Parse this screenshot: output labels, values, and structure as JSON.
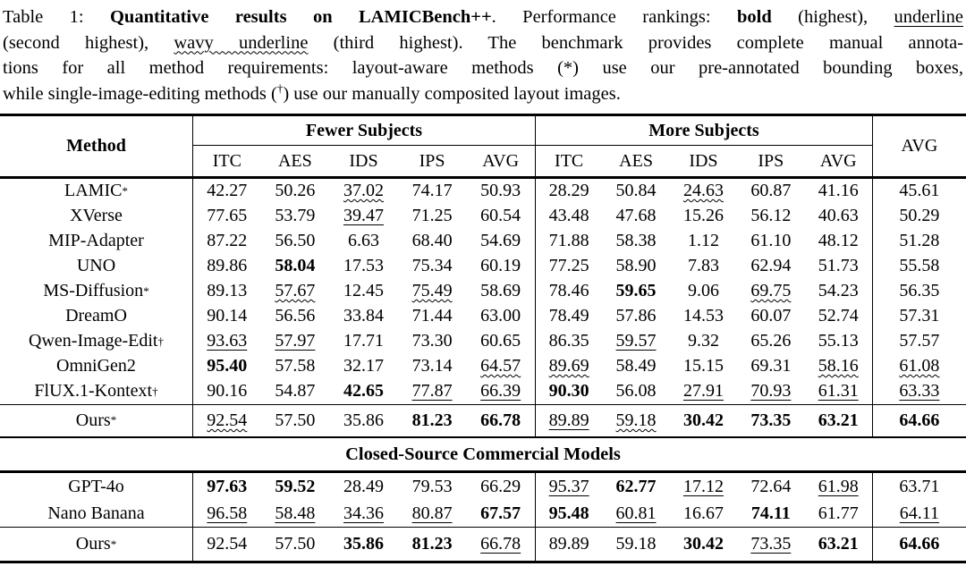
{
  "caption": {
    "lines": [
      [
        {
          "t": "Table 1: ",
          "s": ""
        },
        {
          "t": "Quantitative results on LAMICBench++",
          "s": "b"
        },
        {
          "t": ". Performance rankings: ",
          "s": ""
        },
        {
          "t": "bold",
          "s": "b"
        },
        {
          "t": " (highest), ",
          "s": ""
        },
        {
          "t": "underline",
          "s": "u"
        }
      ],
      [
        {
          "t": "(second highest), ",
          "s": ""
        },
        {
          "t": "wavy underline",
          "s": "w"
        },
        {
          "t": " (third highest). The benchmark provides complete manual annota-",
          "s": ""
        }
      ],
      [
        {
          "t": "tions for all method requirements: layout-aware methods (*) use our pre-annotated bounding boxes,",
          "s": ""
        }
      ],
      [
        {
          "t": "while single-image-editing methods (",
          "s": ""
        },
        {
          "t": "†",
          "s": "sup"
        },
        {
          "t": ") use our manually composited layout images.",
          "s": ""
        }
      ]
    ]
  },
  "table": {
    "method_header": "Method",
    "overall_avg_header": "AVG",
    "groups": [
      {
        "label": "Fewer Subjects",
        "cols": [
          "ITC",
          "AES",
          "IDS",
          "IPS",
          "AVG"
        ]
      },
      {
        "label": "More Subjects",
        "cols": [
          "ITC",
          "AES",
          "IDS",
          "IPS",
          "AVG"
        ]
      }
    ],
    "col_keys": [
      "fewer-itc",
      "fewer-aes",
      "fewer-ids",
      "fewer-ips",
      "fewer-avg",
      "more-itc",
      "more-aes",
      "more-ids",
      "more-ips",
      "more-avg",
      "overall-avg"
    ],
    "sections": [
      {
        "id": "open-source",
        "rows": [
          {
            "method": "LAMIC",
            "sup": "*",
            "values": [
              "42.27",
              "50.26",
              "37.02",
              "74.17",
              "50.93",
              "28.29",
              "50.84",
              "24.63",
              "60.87",
              "41.16",
              "45.61"
            ],
            "marks": [
              "",
              "",
              "w",
              "",
              "",
              "",
              "",
              "w",
              "",
              "",
              ""
            ]
          },
          {
            "method": "XVerse",
            "sup": "",
            "values": [
              "77.65",
              "53.79",
              "39.47",
              "71.25",
              "60.54",
              "43.48",
              "47.68",
              "15.26",
              "56.12",
              "40.63",
              "50.29"
            ],
            "marks": [
              "",
              "",
              "u",
              "",
              "",
              "",
              "",
              "",
              "",
              "",
              ""
            ]
          },
          {
            "method": "MIP-Adapter",
            "sup": "",
            "values": [
              "87.22",
              "56.50",
              "6.63",
              "68.40",
              "54.69",
              "71.88",
              "58.38",
              "1.12",
              "61.10",
              "48.12",
              "51.28"
            ],
            "marks": [
              "",
              "",
              "",
              "",
              "",
              "",
              "",
              "",
              "",
              "",
              ""
            ]
          },
          {
            "method": "UNO",
            "sup": "",
            "values": [
              "89.86",
              "58.04",
              "17.53",
              "75.34",
              "60.19",
              "77.25",
              "58.90",
              "7.83",
              "62.94",
              "51.73",
              "55.58"
            ],
            "marks": [
              "",
              "b",
              "",
              "",
              "",
              "",
              "",
              "",
              "",
              "",
              ""
            ]
          },
          {
            "method": "MS-Diffusion",
            "sup": "*",
            "values": [
              "89.13",
              "57.67",
              "12.45",
              "75.49",
              "58.69",
              "78.46",
              "59.65",
              "9.06",
              "69.75",
              "54.23",
              "56.35"
            ],
            "marks": [
              "",
              "w",
              "",
              "w",
              "",
              "",
              "b",
              "",
              "w",
              "",
              ""
            ]
          },
          {
            "method": "DreamO",
            "sup": "",
            "values": [
              "90.14",
              "56.56",
              "33.84",
              "71.44",
              "63.00",
              "78.49",
              "57.86",
              "14.53",
              "60.07",
              "52.74",
              "57.31"
            ],
            "marks": [
              "",
              "",
              "",
              "",
              "",
              "",
              "",
              "",
              "",
              "",
              ""
            ]
          },
          {
            "method": "Qwen-Image-Edit",
            "sup": "†",
            "values": [
              "93.63",
              "57.97",
              "17.71",
              "73.30",
              "60.65",
              "86.35",
              "59.57",
              "9.32",
              "65.26",
              "55.13",
              "57.57"
            ],
            "marks": [
              "u",
              "u",
              "",
              "",
              "",
              "",
              "u",
              "",
              "",
              "",
              ""
            ]
          },
          {
            "method": "OmniGen2",
            "sup": "",
            "values": [
              "95.40",
              "57.58",
              "32.17",
              "73.14",
              "64.57",
              "89.69",
              "58.49",
              "15.15",
              "69.31",
              "58.16",
              "61.08"
            ],
            "marks": [
              "b",
              "",
              "",
              "",
              "w",
              "w",
              "",
              "",
              "",
              "w",
              "w"
            ]
          },
          {
            "method": "FlUX.1-Kontext",
            "sup": "†",
            "values": [
              "90.16",
              "54.87",
              "42.65",
              "77.87",
              "66.39",
              "90.30",
              "56.08",
              "27.91",
              "70.93",
              "61.31",
              "63.33"
            ],
            "marks": [
              "",
              "",
              "b",
              "u",
              "u",
              "b",
              "",
              "u",
              "u",
              "u",
              "u"
            ]
          }
        ],
        "summary": {
          "method": "Ours",
          "sup": "*",
          "values": [
            "92.54",
            "57.50",
            "35.86",
            "81.23",
            "66.78",
            "89.89",
            "59.18",
            "30.42",
            "73.35",
            "63.21",
            "64.66"
          ],
          "marks": [
            "w",
            "",
            "",
            "b",
            "b",
            "u",
            "w",
            "b",
            "b",
            "b",
            "b"
          ]
        }
      },
      {
        "id": "closed-source",
        "header": "Closed-Source Commercial Models",
        "rows": [
          {
            "method": "GPT-4o",
            "sup": "",
            "values": [
              "97.63",
              "59.52",
              "28.49",
              "79.53",
              "66.29",
              "95.37",
              "62.77",
              "17.12",
              "72.64",
              "61.98",
              "63.71"
            ],
            "marks": [
              "b",
              "b",
              "",
              "",
              "",
              "u",
              "b",
              "u",
              "",
              "u",
              ""
            ]
          },
          {
            "method": "Nano Banana",
            "sup": "",
            "values": [
              "96.58",
              "58.48",
              "34.36",
              "80.87",
              "67.57",
              "95.48",
              "60.81",
              "16.67",
              "74.11",
              "61.77",
              "64.11"
            ],
            "marks": [
              "u",
              "u",
              "u",
              "u",
              "b",
              "b",
              "u",
              "",
              "b",
              "",
              "u"
            ]
          }
        ],
        "summary": {
          "method": "Ours",
          "sup": "*",
          "values": [
            "92.54",
            "57.50",
            "35.86",
            "81.23",
            "66.78",
            "89.89",
            "59.18",
            "30.42",
            "73.35",
            "63.21",
            "64.66"
          ],
          "marks": [
            "",
            "",
            "b",
            "b",
            "u",
            "",
            "",
            "b",
            "u",
            "b",
            "b"
          ]
        }
      }
    ]
  }
}
